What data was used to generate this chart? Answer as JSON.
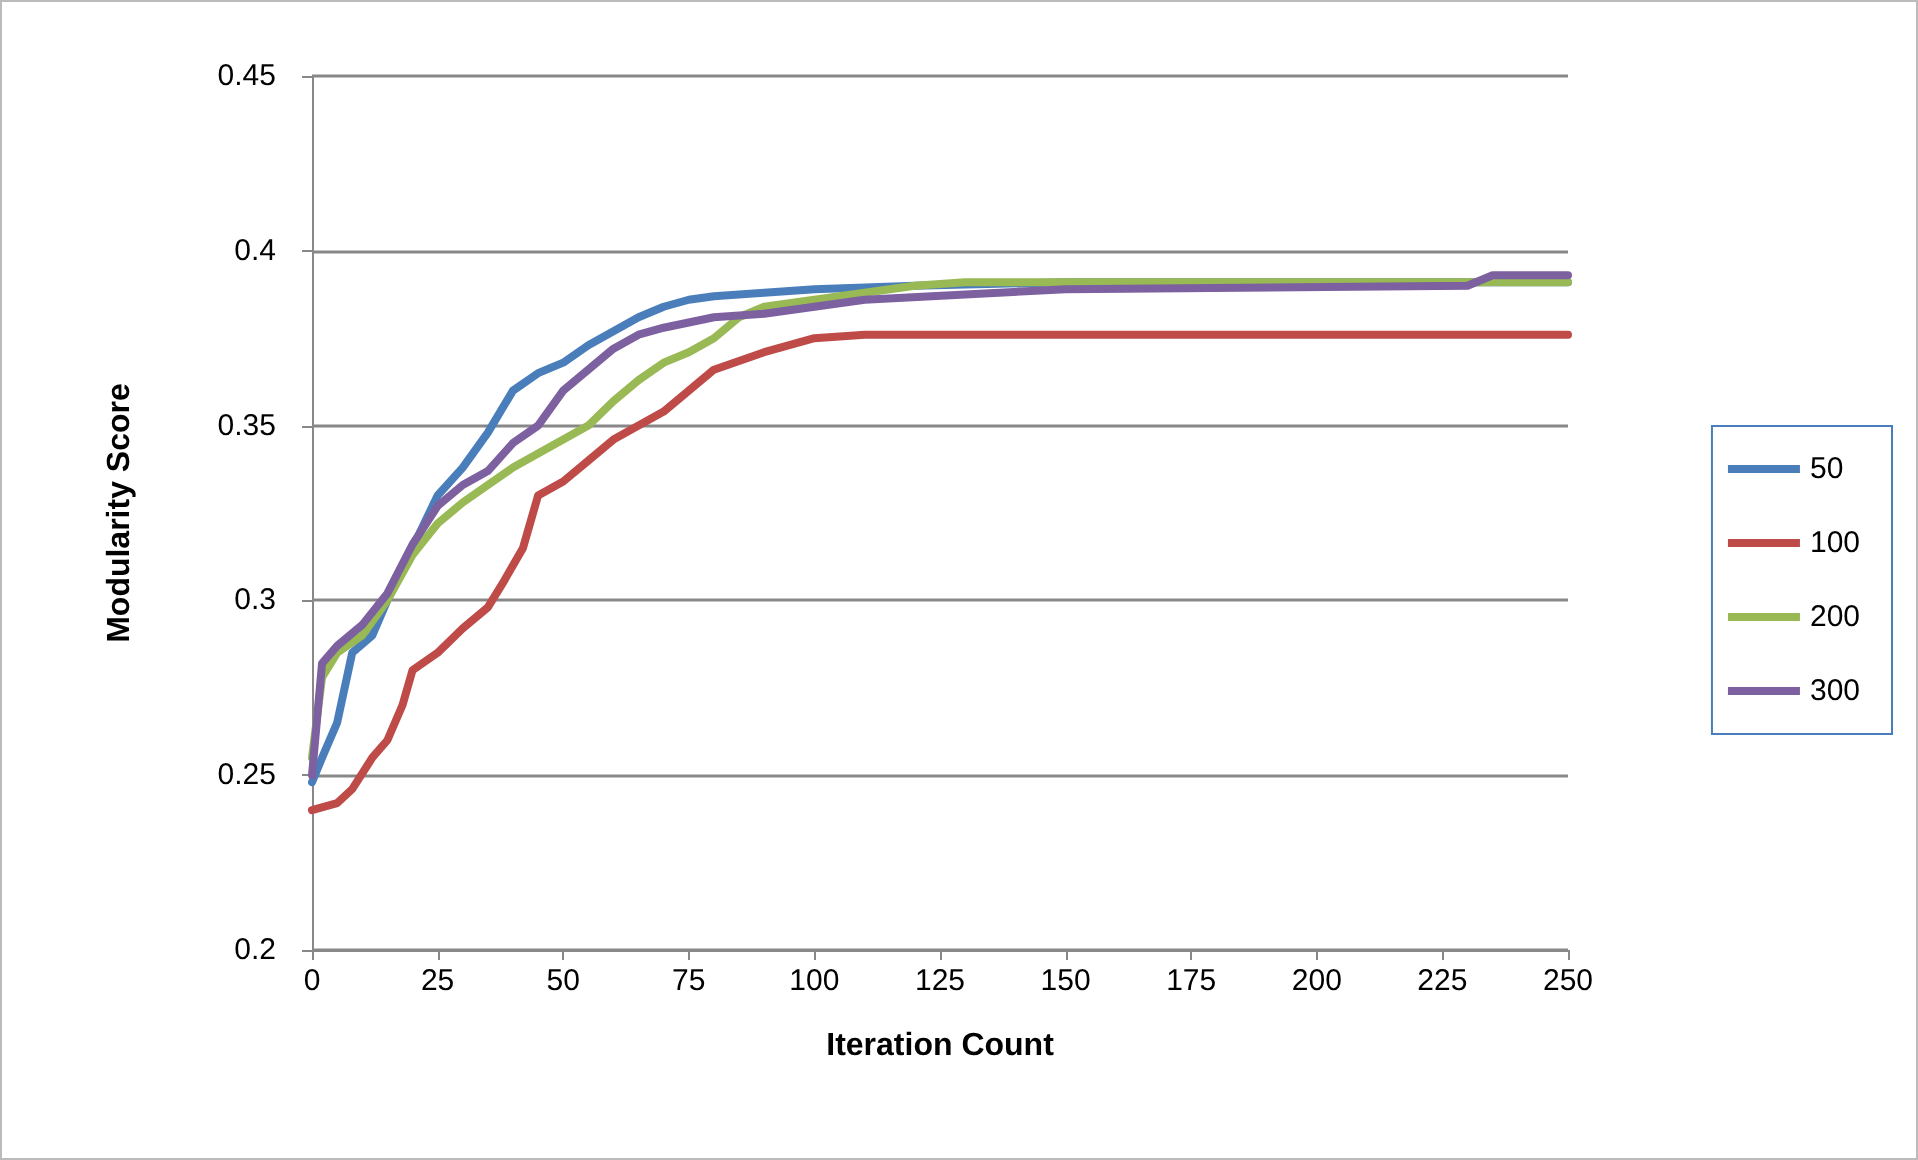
{
  "chart_data": {
    "type": "line",
    "xlabel": "Iteration Count",
    "ylabel": "Modularity Score",
    "xlim": [
      0,
      250
    ],
    "xticks": [
      0,
      25,
      50,
      75,
      100,
      125,
      150,
      175,
      200,
      225,
      250
    ],
    "ylim": [
      0.2,
      0.45
    ],
    "yticks": [
      0.2,
      0.25,
      0.3,
      0.35,
      0.4,
      0.45
    ],
    "grid": "y",
    "legend": "right",
    "marker": "none",
    "line_style": "solid",
    "series": [
      {
        "name": "50",
        "color": "#4a7ebb",
        "x": [
          0,
          2,
          5,
          8,
          12,
          15,
          20,
          25,
          30,
          35,
          40,
          45,
          50,
          55,
          60,
          65,
          70,
          75,
          80,
          90,
          100,
          120,
          150,
          250
        ],
        "values": [
          0.248,
          0.255,
          0.265,
          0.285,
          0.29,
          0.3,
          0.315,
          0.33,
          0.338,
          0.348,
          0.36,
          0.365,
          0.368,
          0.373,
          0.377,
          0.381,
          0.384,
          0.386,
          0.387,
          0.388,
          0.389,
          0.39,
          0.391,
          0.391
        ]
      },
      {
        "name": "100",
        "color": "#be4b48",
        "x": [
          0,
          5,
          8,
          12,
          15,
          18,
          20,
          25,
          30,
          35,
          38,
          42,
          45,
          50,
          55,
          60,
          65,
          70,
          75,
          80,
          90,
          100,
          110,
          250
        ],
        "values": [
          0.24,
          0.242,
          0.246,
          0.255,
          0.26,
          0.27,
          0.28,
          0.285,
          0.292,
          0.298,
          0.305,
          0.315,
          0.33,
          0.334,
          0.34,
          0.346,
          0.35,
          0.354,
          0.36,
          0.366,
          0.371,
          0.375,
          0.376,
          0.376
        ]
      },
      {
        "name": "200",
        "color": "#98b954",
        "x": [
          0,
          2,
          5,
          10,
          15,
          20,
          25,
          30,
          35,
          40,
          45,
          50,
          55,
          60,
          65,
          70,
          75,
          80,
          85,
          90,
          100,
          110,
          120,
          130,
          230,
          250
        ],
        "values": [
          0.255,
          0.278,
          0.285,
          0.29,
          0.3,
          0.313,
          0.322,
          0.328,
          0.333,
          0.338,
          0.342,
          0.346,
          0.35,
          0.357,
          0.363,
          0.368,
          0.371,
          0.375,
          0.381,
          0.384,
          0.386,
          0.388,
          0.39,
          0.391,
          0.391,
          0.391
        ]
      },
      {
        "name": "300",
        "color": "#7d60a0",
        "x": [
          0,
          2,
          5,
          10,
          15,
          20,
          25,
          30,
          35,
          40,
          45,
          50,
          55,
          60,
          65,
          70,
          80,
          90,
          100,
          110,
          150,
          230,
          235,
          250
        ],
        "values": [
          0.25,
          0.282,
          0.287,
          0.293,
          0.302,
          0.316,
          0.327,
          0.333,
          0.337,
          0.345,
          0.35,
          0.36,
          0.366,
          0.372,
          0.376,
          0.378,
          0.381,
          0.382,
          0.384,
          0.386,
          0.389,
          0.39,
          0.393,
          0.393
        ]
      }
    ]
  }
}
